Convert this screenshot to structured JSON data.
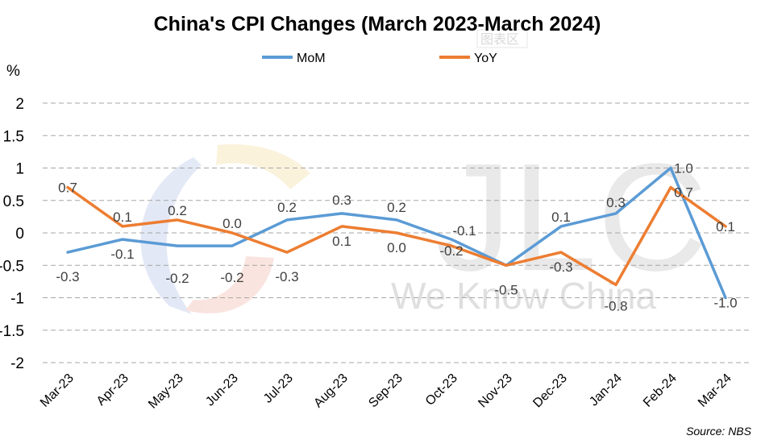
{
  "chart_data": {
    "type": "line",
    "title": "China's CPI Changes (March 2023-March 2024)",
    "ylabel": "%",
    "ylim": [
      -2,
      2
    ],
    "yticks": [
      2,
      1.5,
      1,
      0.5,
      0,
      -0.5,
      -1,
      -1.5,
      -2
    ],
    "ytick_labels": [
      "2",
      "1.5",
      "1",
      "0.5",
      "0",
      "-0.5",
      "-1",
      "-1.5",
      "-2"
    ],
    "categories": [
      "Mar-23",
      "Apr-23",
      "May-23",
      "Jun-23",
      "Jul-23",
      "Aug-23",
      "Sep-23",
      "Oct-23",
      "Nov-23",
      "Dec-23",
      "Jan-24",
      "Feb-24",
      "Mar-24"
    ],
    "series": [
      {
        "name": "MoM",
        "color": "#5b9bd5",
        "values": [
          -0.3,
          -0.1,
          -0.2,
          -0.2,
          0.2,
          0.3,
          0.2,
          -0.1,
          -0.5,
          0.1,
          0.3,
          1.0,
          -1.0
        ],
        "labels": [
          "-0.3",
          "-0.1",
          "-0.2",
          "-0.2",
          "0.2",
          "0.3",
          "0.2",
          "-0.1",
          "-0.5",
          "0.1",
          "0.3",
          "1.0",
          "-1.0"
        ]
      },
      {
        "name": "YoY",
        "color": "#ed7d31",
        "values": [
          0.7,
          0.1,
          0.2,
          0.0,
          -0.3,
          0.1,
          0.0,
          -0.2,
          -0.5,
          -0.3,
          -0.8,
          0.7,
          0.1
        ],
        "labels": [
          "0.7",
          "0.1",
          "0.2",
          "0.0",
          "-0.3",
          "0.1",
          "0.0",
          "-0.2",
          "",
          "-0.3",
          "-0.8",
          "0.7",
          "0.1"
        ]
      }
    ],
    "grid": true,
    "legend_position": "top-center",
    "source": "Source: NBS"
  },
  "watermark": {
    "brand": "JLC",
    "tagline": "We Know China",
    "badge": "图表区"
  }
}
